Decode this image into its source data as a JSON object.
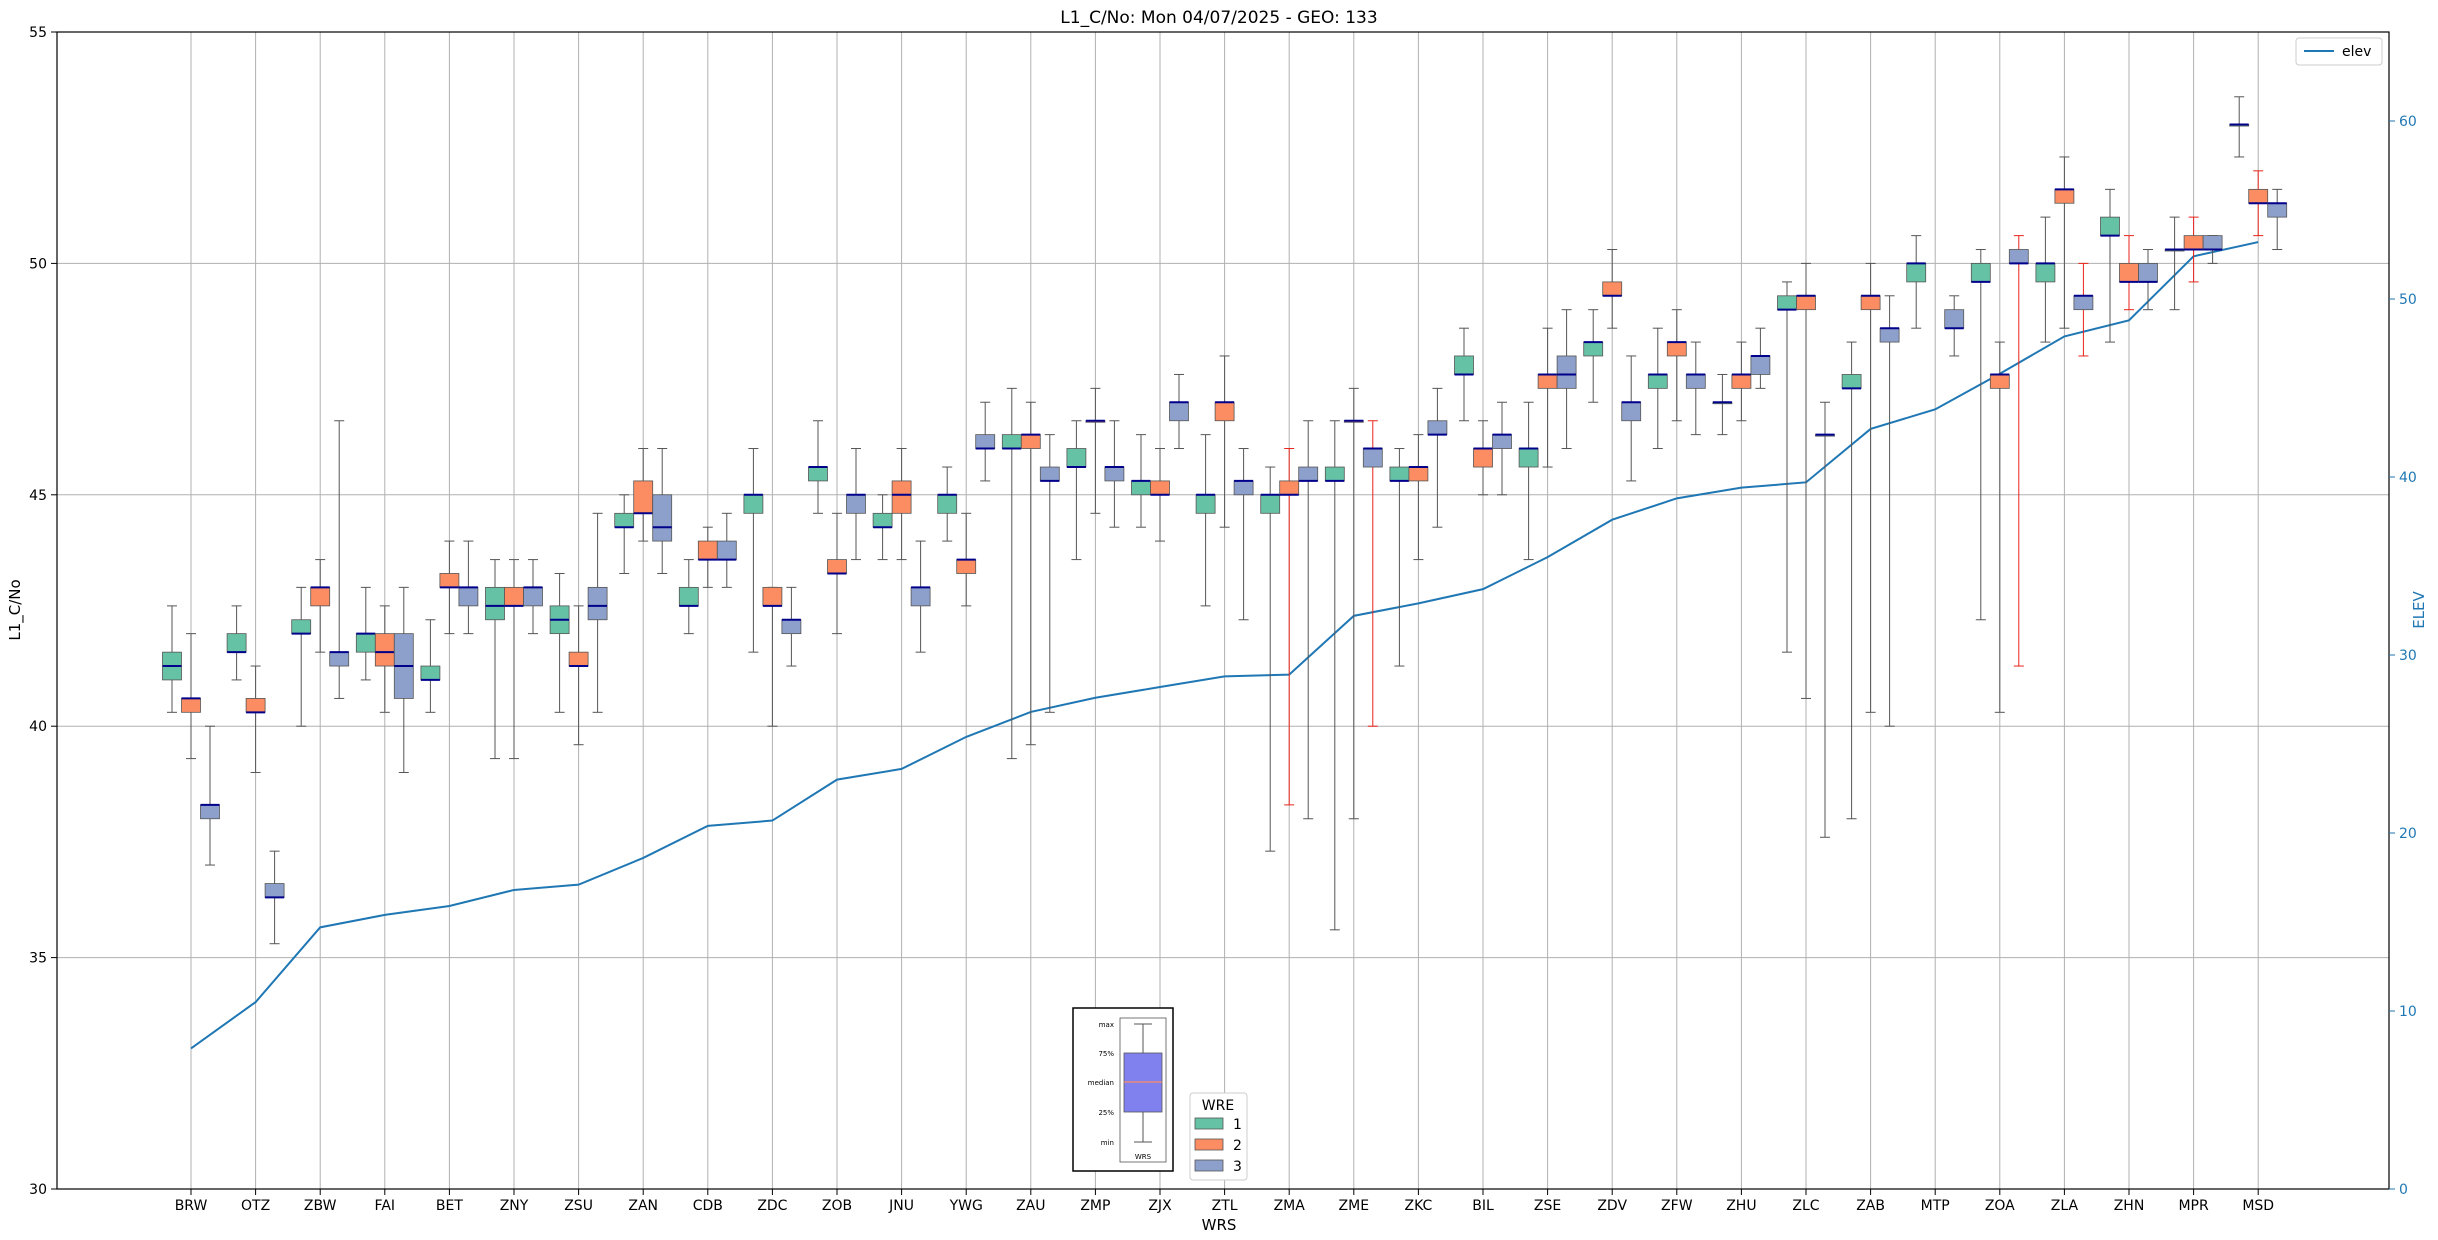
{
  "chart_data": {
    "type": "boxplot",
    "title": "L1_C/No: Mon 04/07/2025 - GEO: 133",
    "xlabel": "WRS",
    "ylabel": "L1_C/No",
    "ylabel_right": "ELEV",
    "ylim": [
      30,
      55
    ],
    "ylim_right": [
      0,
      65
    ],
    "yticks": [
      30,
      35,
      40,
      45,
      50,
      55
    ],
    "yticks_right": [
      0,
      10,
      20,
      30,
      40,
      50,
      60
    ],
    "grid": true,
    "categories": [
      "BRW",
      "OTZ",
      "ZBW",
      "FAI",
      "BET",
      "ZNY",
      "ZSU",
      "ZAN",
      "CDB",
      "ZDC",
      "ZOB",
      "JNU",
      "YWG",
      "ZAU",
      "ZMP",
      "ZJX",
      "ZTL",
      "ZMA",
      "ZME",
      "ZKC",
      "BIL",
      "ZSE",
      "ZDV",
      "ZFW",
      "ZHU",
      "ZLC",
      "ZAB",
      "MTP",
      "ZOA",
      "ZLA",
      "ZHN",
      "MPR",
      "MSD"
    ],
    "series_colors": {
      "1": "#66c2a5",
      "2": "#fc8d62",
      "3": "#8da0cb"
    },
    "median_color": "#00008b",
    "boxes": [
      {
        "wrs": "BRW",
        "wre": 1,
        "whislo": 40.3,
        "q1": 41.0,
        "med": 41.3,
        "q3": 41.6,
        "whishi": 42.6
      },
      {
        "wrs": "BRW",
        "wre": 2,
        "whislo": 39.3,
        "q1": 40.3,
        "med": 40.6,
        "q3": 40.6,
        "whishi": 42.0
      },
      {
        "wrs": "BRW",
        "wre": 3,
        "whislo": 37.0,
        "q1": 38.0,
        "med": 38.3,
        "q3": 38.3,
        "whishi": 40.0
      },
      {
        "wrs": "OTZ",
        "wre": 1,
        "whislo": 41.0,
        "q1": 41.6,
        "med": 41.6,
        "q3": 42.0,
        "whishi": 42.6
      },
      {
        "wrs": "OTZ",
        "wre": 2,
        "whislo": 39.0,
        "q1": 40.3,
        "med": 40.3,
        "q3": 40.6,
        "whishi": 41.3
      },
      {
        "wrs": "OTZ",
        "wre": 3,
        "whislo": 35.3,
        "q1": 36.3,
        "med": 36.3,
        "q3": 36.6,
        "whishi": 37.3
      },
      {
        "wrs": "ZBW",
        "wre": 1,
        "whislo": 40.0,
        "q1": 42.0,
        "med": 42.0,
        "q3": 42.3,
        "whishi": 43.0
      },
      {
        "wrs": "ZBW",
        "wre": 2,
        "whislo": 41.6,
        "q1": 42.6,
        "med": 43.0,
        "q3": 43.0,
        "whishi": 43.6
      },
      {
        "wrs": "ZBW",
        "wre": 3,
        "whislo": 40.6,
        "q1": 41.3,
        "med": 41.6,
        "q3": 41.6,
        "whishi": 46.6
      },
      {
        "wrs": "FAI",
        "wre": 1,
        "whislo": 41.0,
        "q1": 41.6,
        "med": 42.0,
        "q3": 42.0,
        "whishi": 43.0
      },
      {
        "wrs": "FAI",
        "wre": 2,
        "whislo": 40.3,
        "q1": 41.3,
        "med": 41.6,
        "q3": 42.0,
        "whishi": 42.6
      },
      {
        "wrs": "FAI",
        "wre": 3,
        "whislo": 39.0,
        "q1": 40.6,
        "med": 41.3,
        "q3": 42.0,
        "whishi": 43.0
      },
      {
        "wrs": "BET",
        "wre": 1,
        "whislo": 40.3,
        "q1": 41.0,
        "med": 41.0,
        "q3": 41.3,
        "whishi": 42.3
      },
      {
        "wrs": "BET",
        "wre": 2,
        "whislo": 42.0,
        "q1": 43.0,
        "med": 43.0,
        "q3": 43.3,
        "whishi": 44.0
      },
      {
        "wrs": "BET",
        "wre": 3,
        "whislo": 42.0,
        "q1": 42.6,
        "med": 43.0,
        "q3": 43.0,
        "whishi": 44.0
      },
      {
        "wrs": "ZNY",
        "wre": 1,
        "whislo": 39.3,
        "q1": 42.3,
        "med": 42.6,
        "q3": 43.0,
        "whishi": 43.6
      },
      {
        "wrs": "ZNY",
        "wre": 2,
        "whislo": 39.3,
        "q1": 42.6,
        "med": 42.6,
        "q3": 43.0,
        "whishi": 43.6
      },
      {
        "wrs": "ZNY",
        "wre": 3,
        "whislo": 42.0,
        "q1": 42.6,
        "med": 43.0,
        "q3": 43.0,
        "whishi": 43.6
      },
      {
        "wrs": "ZSU",
        "wre": 1,
        "whislo": 40.3,
        "q1": 42.0,
        "med": 42.3,
        "q3": 42.6,
        "whishi": 43.3
      },
      {
        "wrs": "ZSU",
        "wre": 2,
        "whislo": 39.6,
        "q1": 41.3,
        "med": 41.3,
        "q3": 41.6,
        "whishi": 42.6
      },
      {
        "wrs": "ZSU",
        "wre": 3,
        "whislo": 40.3,
        "q1": 42.3,
        "med": 42.6,
        "q3": 43.0,
        "whishi": 44.6
      },
      {
        "wrs": "ZAN",
        "wre": 1,
        "whislo": 43.3,
        "q1": 44.3,
        "med": 44.3,
        "q3": 44.6,
        "whishi": 45.0
      },
      {
        "wrs": "ZAN",
        "wre": 2,
        "whislo": 44.0,
        "q1": 44.6,
        "med": 44.6,
        "q3": 45.3,
        "whishi": 46.0
      },
      {
        "wrs": "ZAN",
        "wre": 3,
        "whislo": 43.3,
        "q1": 44.0,
        "med": 44.3,
        "q3": 45.0,
        "whishi": 46.0
      },
      {
        "wrs": "CDB",
        "wre": 1,
        "whislo": 42.0,
        "q1": 42.6,
        "med": 42.6,
        "q3": 43.0,
        "whishi": 43.6
      },
      {
        "wrs": "CDB",
        "wre": 2,
        "whislo": 43.0,
        "q1": 43.6,
        "med": 43.6,
        "q3": 44.0,
        "whishi": 44.3
      },
      {
        "wrs": "CDB",
        "wre": 3,
        "whislo": 43.0,
        "q1": 43.6,
        "med": 43.6,
        "q3": 44.0,
        "whishi": 44.6
      },
      {
        "wrs": "ZDC",
        "wre": 1,
        "whislo": 41.6,
        "q1": 44.6,
        "med": 45.0,
        "q3": 45.0,
        "whishi": 46.0
      },
      {
        "wrs": "ZDC",
        "wre": 2,
        "whislo": 40.0,
        "q1": 42.6,
        "med": 42.6,
        "q3": 43.0,
        "whishi": 43.0
      },
      {
        "wrs": "ZDC",
        "wre": 3,
        "whislo": 41.3,
        "q1": 42.0,
        "med": 42.3,
        "q3": 42.3,
        "whishi": 43.0
      },
      {
        "wrs": "ZOB",
        "wre": 1,
        "whislo": 44.6,
        "q1": 45.3,
        "med": 45.6,
        "q3": 45.6,
        "whishi": 46.6
      },
      {
        "wrs": "ZOB",
        "wre": 2,
        "whislo": 42.0,
        "q1": 43.3,
        "med": 43.3,
        "q3": 43.6,
        "whishi": 44.6
      },
      {
        "wrs": "ZOB",
        "wre": 3,
        "whislo": 43.6,
        "q1": 44.6,
        "med": 45.0,
        "q3": 45.0,
        "whishi": 46.0
      },
      {
        "wrs": "JNU",
        "wre": 1,
        "whislo": 43.6,
        "q1": 44.3,
        "med": 44.3,
        "q3": 44.6,
        "whishi": 45.0
      },
      {
        "wrs": "JNU",
        "wre": 2,
        "whislo": 43.6,
        "q1": 44.6,
        "med": 45.0,
        "q3": 45.3,
        "whishi": 46.0
      },
      {
        "wrs": "JNU",
        "wre": 3,
        "whislo": 41.6,
        "q1": 42.6,
        "med": 43.0,
        "q3": 43.0,
        "whishi": 44.0
      },
      {
        "wrs": "YWG",
        "wre": 1,
        "whislo": 44.0,
        "q1": 44.6,
        "med": 45.0,
        "q3": 45.0,
        "whishi": 45.6
      },
      {
        "wrs": "YWG",
        "wre": 2,
        "whislo": 42.6,
        "q1": 43.3,
        "med": 43.6,
        "q3": 43.6,
        "whishi": 44.6
      },
      {
        "wrs": "YWG",
        "wre": 3,
        "whislo": 45.3,
        "q1": 46.0,
        "med": 46.0,
        "q3": 46.3,
        "whishi": 47.0
      },
      {
        "wrs": "ZAU",
        "wre": 1,
        "whislo": 39.3,
        "q1": 46.0,
        "med": 46.0,
        "q3": 46.3,
        "whishi": 47.3
      },
      {
        "wrs": "ZAU",
        "wre": 2,
        "whislo": 39.6,
        "q1": 46.0,
        "med": 46.3,
        "q3": 46.3,
        "whishi": 47.0
      },
      {
        "wrs": "ZAU",
        "wre": 3,
        "whislo": 40.3,
        "q1": 45.3,
        "med": 45.3,
        "q3": 45.6,
        "whishi": 46.3
      },
      {
        "wrs": "ZMP",
        "wre": 1,
        "whislo": 43.6,
        "q1": 45.6,
        "med": 45.6,
        "q3": 46.0,
        "whishi": 46.6
      },
      {
        "wrs": "ZMP",
        "wre": 2,
        "whislo": 44.6,
        "q1": 46.6,
        "med": 46.6,
        "q3": 46.6,
        "whishi": 47.3
      },
      {
        "wrs": "ZMP",
        "wre": 3,
        "whislo": 44.3,
        "q1": 45.3,
        "med": 45.6,
        "q3": 45.6,
        "whishi": 46.6
      },
      {
        "wrs": "ZJX",
        "wre": 1,
        "whislo": 44.3,
        "q1": 45.0,
        "med": 45.3,
        "q3": 45.3,
        "whishi": 46.3
      },
      {
        "wrs": "ZJX",
        "wre": 2,
        "whislo": 44.0,
        "q1": 45.0,
        "med": 45.0,
        "q3": 45.3,
        "whishi": 46.0
      },
      {
        "wrs": "ZJX",
        "wre": 3,
        "whislo": 46.0,
        "q1": 46.6,
        "med": 47.0,
        "q3": 47.0,
        "whishi": 47.6
      },
      {
        "wrs": "ZTL",
        "wre": 1,
        "whislo": 42.6,
        "q1": 44.6,
        "med": 45.0,
        "q3": 45.0,
        "whishi": 46.3
      },
      {
        "wrs": "ZTL",
        "wre": 2,
        "whislo": 44.3,
        "q1": 46.6,
        "med": 47.0,
        "q3": 47.0,
        "whishi": 48.0
      },
      {
        "wrs": "ZTL",
        "wre": 3,
        "whislo": 42.3,
        "q1": 45.0,
        "med": 45.3,
        "q3": 45.3,
        "whishi": 46.0
      },
      {
        "wrs": "ZMA",
        "wre": 1,
        "whislo": 37.3,
        "q1": 44.6,
        "med": 45.0,
        "q3": 45.0,
        "whishi": 45.6
      },
      {
        "wrs": "ZMA",
        "wre": 2,
        "whislo": 38.3,
        "q1": 45.0,
        "med": 45.0,
        "q3": 45.3,
        "whishi": 46.0
      },
      {
        "wrs": "ZMA",
        "wre": 3,
        "whislo": 38.0,
        "q1": 45.3,
        "med": 45.3,
        "q3": 45.6,
        "whishi": 46.6
      },
      {
        "wrs": "ZME",
        "wre": 1,
        "whislo": 35.6,
        "q1": 45.3,
        "med": 45.3,
        "q3": 45.6,
        "whishi": 46.6
      },
      {
        "wrs": "ZME",
        "wre": 2,
        "whislo": 38.0,
        "q1": 46.6,
        "med": 46.6,
        "q3": 46.6,
        "whishi": 47.3
      },
      {
        "wrs": "ZME",
        "wre": 3,
        "whislo": 40.0,
        "q1": 45.6,
        "med": 46.0,
        "q3": 46.0,
        "whishi": 46.6
      },
      {
        "wrs": "ZKC",
        "wre": 1,
        "whislo": 41.3,
        "q1": 45.3,
        "med": 45.3,
        "q3": 45.6,
        "whishi": 46.0
      },
      {
        "wrs": "ZKC",
        "wre": 2,
        "whislo": 43.6,
        "q1": 45.3,
        "med": 45.6,
        "q3": 45.6,
        "whishi": 46.3
      },
      {
        "wrs": "ZKC",
        "wre": 3,
        "whislo": 44.3,
        "q1": 46.3,
        "med": 46.3,
        "q3": 46.6,
        "whishi": 47.3
      },
      {
        "wrs": "BIL",
        "wre": 1,
        "whislo": 46.6,
        "q1": 47.6,
        "med": 47.6,
        "q3": 48.0,
        "whishi": 48.6
      },
      {
        "wrs": "BIL",
        "wre": 2,
        "whislo": 45.0,
        "q1": 45.6,
        "med": 46.0,
        "q3": 46.0,
        "whishi": 46.6
      },
      {
        "wrs": "BIL",
        "wre": 3,
        "whislo": 45.0,
        "q1": 46.0,
        "med": 46.3,
        "q3": 46.3,
        "whishi": 47.0
      },
      {
        "wrs": "ZSE",
        "wre": 1,
        "whislo": 43.6,
        "q1": 45.6,
        "med": 46.0,
        "q3": 46.0,
        "whishi": 47.0
      },
      {
        "wrs": "ZSE",
        "wre": 2,
        "whislo": 45.6,
        "q1": 47.3,
        "med": 47.6,
        "q3": 47.6,
        "whishi": 48.6
      },
      {
        "wrs": "ZSE",
        "wre": 3,
        "whislo": 46.0,
        "q1": 47.3,
        "med": 47.6,
        "q3": 48.0,
        "whishi": 49.0
      },
      {
        "wrs": "ZDV",
        "wre": 1,
        "whislo": 47.0,
        "q1": 48.0,
        "med": 48.3,
        "q3": 48.3,
        "whishi": 49.0
      },
      {
        "wrs": "ZDV",
        "wre": 2,
        "whislo": 48.6,
        "q1": 49.3,
        "med": 49.3,
        "q3": 49.6,
        "whishi": 50.3
      },
      {
        "wrs": "ZDV",
        "wre": 3,
        "whislo": 45.3,
        "q1": 46.6,
        "med": 47.0,
        "q3": 47.0,
        "whishi": 48.0
      },
      {
        "wrs": "ZFW",
        "wre": 1,
        "whislo": 46.0,
        "q1": 47.3,
        "med": 47.6,
        "q3": 47.6,
        "whishi": 48.6
      },
      {
        "wrs": "ZFW",
        "wre": 2,
        "whislo": 46.6,
        "q1": 48.0,
        "med": 48.3,
        "q3": 48.3,
        "whishi": 49.0
      },
      {
        "wrs": "ZFW",
        "wre": 3,
        "whislo": 46.3,
        "q1": 47.3,
        "med": 47.6,
        "q3": 47.6,
        "whishi": 48.3
      },
      {
        "wrs": "ZHU",
        "wre": 1,
        "whislo": 46.3,
        "q1": 47.0,
        "med": 47.0,
        "q3": 47.0,
        "whishi": 47.6
      },
      {
        "wrs": "ZHU",
        "wre": 2,
        "whislo": 46.6,
        "q1": 47.3,
        "med": 47.6,
        "q3": 47.6,
        "whishi": 48.3
      },
      {
        "wrs": "ZHU",
        "wre": 3,
        "whislo": 47.3,
        "q1": 47.6,
        "med": 48.0,
        "q3": 48.0,
        "whishi": 48.6
      },
      {
        "wrs": "ZLC",
        "wre": 1,
        "whislo": 41.6,
        "q1": 49.0,
        "med": 49.0,
        "q3": 49.3,
        "whishi": 49.6
      },
      {
        "wrs": "ZLC",
        "wre": 2,
        "whislo": 40.6,
        "q1": 49.0,
        "med": 49.3,
        "q3": 49.3,
        "whishi": 50.0
      },
      {
        "wrs": "ZLC",
        "wre": 3,
        "whislo": 37.6,
        "q1": 46.3,
        "med": 46.3,
        "q3": 46.3,
        "whishi": 47.0
      },
      {
        "wrs": "ZAB",
        "wre": 1,
        "whislo": 38.0,
        "q1": 47.3,
        "med": 47.3,
        "q3": 47.6,
        "whishi": 48.3
      },
      {
        "wrs": "ZAB",
        "wre": 2,
        "whislo": 40.3,
        "q1": 49.0,
        "med": 49.3,
        "q3": 49.3,
        "whishi": 50.0
      },
      {
        "wrs": "ZAB",
        "wre": 3,
        "whislo": 40.0,
        "q1": 48.3,
        "med": 48.6,
        "q3": 48.6,
        "whishi": 49.3
      },
      {
        "wrs": "MTP",
        "wre": 1,
        "whislo": 48.6,
        "q1": 49.6,
        "med": 50.0,
        "q3": 50.0,
        "whishi": 50.6
      },
      {
        "wrs": "MTP",
        "wre": 3,
        "whislo": 48.0,
        "q1": 48.6,
        "med": 48.6,
        "q3": 49.0,
        "whishi": 49.3
      },
      {
        "wrs": "ZOA",
        "wre": 1,
        "whislo": 42.3,
        "q1": 49.6,
        "med": 49.6,
        "q3": 50.0,
        "whishi": 50.3
      },
      {
        "wrs": "ZOA",
        "wre": 2,
        "whislo": 40.3,
        "q1": 47.3,
        "med": 47.6,
        "q3": 47.6,
        "whishi": 48.3
      },
      {
        "wrs": "ZOA",
        "wre": 3,
        "whislo": 41.3,
        "q1": 50.0,
        "med": 50.0,
        "q3": 50.3,
        "whishi": 50.6
      },
      {
        "wrs": "ZLA",
        "wre": 1,
        "whislo": 48.3,
        "q1": 49.6,
        "med": 50.0,
        "q3": 50.0,
        "whishi": 51.0
      },
      {
        "wrs": "ZLA",
        "wre": 2,
        "whislo": 48.6,
        "q1": 51.3,
        "med": 51.6,
        "q3": 51.6,
        "whishi": 52.3
      },
      {
        "wrs": "ZLA",
        "wre": 3,
        "whislo": 48.0,
        "q1": 49.0,
        "med": 49.3,
        "q3": 49.3,
        "whishi": 50.0
      },
      {
        "wrs": "ZHN",
        "wre": 1,
        "whislo": 48.3,
        "q1": 50.6,
        "med": 50.6,
        "q3": 51.0,
        "whishi": 51.6
      },
      {
        "wrs": "ZHN",
        "wre": 2,
        "whislo": 49.0,
        "q1": 49.6,
        "med": 49.6,
        "q3": 50.0,
        "whishi": 50.6
      },
      {
        "wrs": "ZHN",
        "wre": 3,
        "whislo": 49.0,
        "q1": 49.6,
        "med": 49.6,
        "q3": 50.0,
        "whishi": 50.3
      },
      {
        "wrs": "MPR",
        "wre": 1,
        "whislo": 49.0,
        "q1": 50.3,
        "med": 50.3,
        "q3": 50.3,
        "whishi": 51.0
      },
      {
        "wrs": "MPR",
        "wre": 2,
        "whislo": 49.6,
        "q1": 50.3,
        "med": 50.3,
        "q3": 50.6,
        "whishi": 51.0
      },
      {
        "wrs": "MPR",
        "wre": 3,
        "whislo": 50.0,
        "q1": 50.3,
        "med": 50.3,
        "q3": 50.6,
        "whishi": 50.6
      },
      {
        "wrs": "MSD",
        "wre": 1,
        "whislo": 52.3,
        "q1": 53.0,
        "med": 53.0,
        "q3": 53.0,
        "whishi": 53.6
      },
      {
        "wrs": "MSD",
        "wre": 2,
        "whislo": 50.6,
        "q1": 51.3,
        "med": 51.3,
        "q3": 51.6,
        "whishi": 52.0
      },
      {
        "wrs": "MSD",
        "wre": 3,
        "whislo": 50.3,
        "q1": 51.0,
        "med": 51.3,
        "q3": 51.3,
        "whishi": 51.6
      }
    ],
    "red_whiskers": [
      {
        "wrs": "ZMA",
        "wre": 2
      },
      {
        "wrs": "ZME",
        "wre": 3
      },
      {
        "wrs": "ZOA",
        "wre": 3
      },
      {
        "wrs": "ZLA",
        "wre": 3
      },
      {
        "wrs": "ZHN",
        "wre": 2
      },
      {
        "wrs": "MPR",
        "wre": 2
      },
      {
        "wrs": "MSD",
        "wre": 2
      }
    ],
    "elev": {
      "name": "elev",
      "color": "#1f77b4",
      "values": [
        7.9,
        10.5,
        14.7,
        15.4,
        15.9,
        16.8,
        17.1,
        18.6,
        20.4,
        20.7,
        23.0,
        23.6,
        25.4,
        26.8,
        27.6,
        28.2,
        28.8,
        28.9,
        32.2,
        32.9,
        33.7,
        35.5,
        37.6,
        38.8,
        39.4,
        39.7,
        42.7,
        43.8,
        45.8,
        47.9,
        48.8,
        52.4,
        53.2
      ]
    },
    "legend_elev": "elev",
    "legend": {
      "title": "WRE",
      "entries": [
        "1",
        "2",
        "3"
      ],
      "placement": "bottom-center"
    },
    "inset_legend": {
      "labels": [
        "max",
        "75%",
        "median",
        "25%",
        "min"
      ],
      "xlabel": "WRS"
    }
  }
}
